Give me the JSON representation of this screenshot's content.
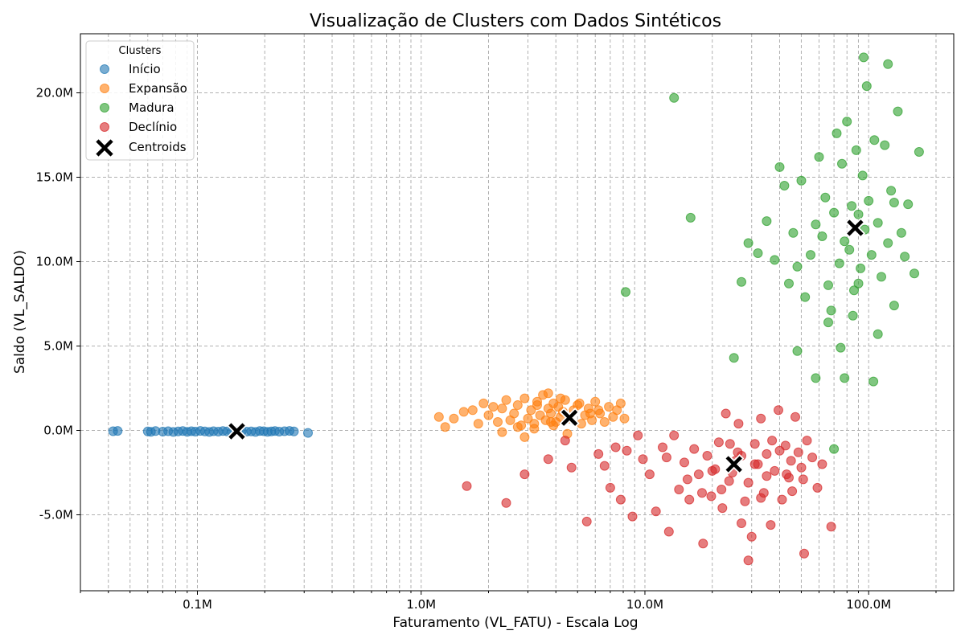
{
  "chart_data": {
    "type": "scatter",
    "title": "Visualização de Clusters com Dados Sintéticos",
    "xlabel": "Faturamento (VL_FATU) - Escala Log",
    "ylabel": "Saldo (VL_SALDO)",
    "x_scale": "log",
    "xlim": [
      30000,
      240000000
    ],
    "ylim": [
      -9500000,
      23500000
    ],
    "x_ticks": [
      {
        "value": 100000,
        "label": "0.1M"
      },
      {
        "value": 1000000,
        "label": "1.0M"
      },
      {
        "value": 10000000,
        "label": "10.0M"
      },
      {
        "value": 100000000,
        "label": "100.0M"
      }
    ],
    "y_ticks": [
      {
        "value": -5000000,
        "label": "-5.0M"
      },
      {
        "value": 0,
        "label": "0.0M"
      },
      {
        "value": 5000000,
        "label": "5.0M"
      },
      {
        "value": 10000000,
        "label": "10.0M"
      },
      {
        "value": 15000000,
        "label": "15.0M"
      },
      {
        "value": 20000000,
        "label": "20.0M"
      }
    ],
    "grid": true,
    "legend": {
      "title": "Clusters",
      "position": "top-left"
    },
    "series": [
      {
        "name": "Início",
        "color": "#1f77b4",
        "x": [
          42000,
          44000,
          60000,
          62000,
          65000,
          70000,
          74000,
          78000,
          82000,
          86000,
          90000,
          94000,
          98000,
          103000,
          108000,
          113000,
          118000,
          124000,
          130000,
          136000,
          142000,
          150000,
          158000,
          166000,
          174000,
          182000,
          190000,
          198000,
          206000,
          214000,
          222000,
          232000,
          245000,
          258000,
          270000,
          312000
        ],
        "y": [
          -50000,
          -30000,
          -60000,
          -80000,
          -40000,
          -70000,
          -50000,
          -90000,
          -60000,
          -40000,
          -80000,
          -50000,
          -70000,
          -30000,
          -60000,
          -90000,
          -50000,
          -70000,
          -40000,
          -60000,
          -80000,
          -50000,
          -30000,
          -70000,
          -60000,
          -90000,
          -40000,
          -50000,
          -80000,
          -60000,
          -40000,
          -70000,
          -50000,
          -30000,
          -60000,
          -150000
        ]
      },
      {
        "name": "Expansão",
        "color": "#ff7f0e",
        "x": [
          1200000,
          1280000,
          1400000,
          1550000,
          1700000,
          1800000,
          1900000,
          2000000,
          2100000,
          2200000,
          2300000,
          2400000,
          2500000,
          2600000,
          2700000,
          2800000,
          2900000,
          3000000,
          3100000,
          3200000,
          3300000,
          3400000,
          3500000,
          3600000,
          3700000,
          3800000,
          3900000,
          4000000,
          4100000,
          4200000,
          4300000,
          4400000,
          4600000,
          4800000,
          5000000,
          5200000,
          5400000,
          5600000,
          5800000,
          6000000,
          6300000,
          6600000,
          6900000,
          7200000,
          7500000,
          7800000,
          8100000,
          2300000,
          2700000,
          3300000,
          3700000,
          3900000,
          4500000,
          5100000,
          5700000,
          2900000,
          3200000,
          3800000,
          4200000,
          6200000
        ],
        "y": [
          800000,
          200000,
          700000,
          1100000,
          1200000,
          400000,
          1600000,
          900000,
          1400000,
          500000,
          1300000,
          1800000,
          600000,
          1000000,
          1500000,
          300000,
          1900000,
          700000,
          1200000,
          400000,
          1700000,
          900000,
          2100000,
          600000,
          1300000,
          1000000,
          1600000,
          500000,
          1400000,
          800000,
          1100000,
          1800000,
          700000,
          1200000,
          1500000,
          400000,
          900000,
          1300000,
          600000,
          1700000,
          1000000,
          500000,
          1400000,
          800000,
          1200000,
          1600000,
          700000,
          -100000,
          200000,
          1500000,
          2200000,
          300000,
          -200000,
          1600000,
          1000000,
          -400000,
          100000,
          500000,
          1900000,
          1200000
        ]
      },
      {
        "name": "Madura",
        "color": "#2ca02c",
        "x": [
          8200000,
          13500000,
          16000000,
          25000000,
          27000000,
          29000000,
          32000000,
          35000000,
          38000000,
          40000000,
          42000000,
          44000000,
          46000000,
          48000000,
          50000000,
          52000000,
          55000000,
          58000000,
          60000000,
          62000000,
          64000000,
          66000000,
          68000000,
          70000000,
          72000000,
          74000000,
          76000000,
          78000000,
          80000000,
          82000000,
          84000000,
          86000000,
          88000000,
          90000000,
          92000000,
          94000000,
          96000000,
          98000000,
          100000000,
          103000000,
          106000000,
          110000000,
          114000000,
          118000000,
          122000000,
          126000000,
          130000000,
          135000000,
          140000000,
          145000000,
          150000000,
          160000000,
          168000000,
          78000000,
          95000000,
          122000000,
          70000000,
          58000000,
          85000000,
          75000000,
          105000000,
          130000000,
          48000000,
          66000000,
          110000000,
          90000000
        ],
        "y": [
          8200000,
          19700000,
          12600000,
          4300000,
          8800000,
          11100000,
          10500000,
          12400000,
          10100000,
          15600000,
          14500000,
          8700000,
          11700000,
          9700000,
          14800000,
          7900000,
          10400000,
          12200000,
          16200000,
          11500000,
          13800000,
          8600000,
          7100000,
          12900000,
          17600000,
          9900000,
          15800000,
          11200000,
          18300000,
          10700000,
          13300000,
          8300000,
          16600000,
          12800000,
          9600000,
          15100000,
          11900000,
          20400000,
          13600000,
          10400000,
          17200000,
          12300000,
          9100000,
          16900000,
          11100000,
          14200000,
          13500000,
          18900000,
          11700000,
          10300000,
          13400000,
          9300000,
          16500000,
          3100000,
          22100000,
          21700000,
          -1100000,
          3100000,
          6800000,
          4900000,
          2900000,
          7400000,
          4700000,
          6400000,
          5700000,
          8700000
        ]
      },
      {
        "name": "Declínio",
        "color": "#d62728",
        "x": [
          1600000,
          2400000,
          2900000,
          3700000,
          4400000,
          4700000,
          5500000,
          6200000,
          6600000,
          7000000,
          7400000,
          7800000,
          8300000,
          8800000,
          9300000,
          9800000,
          10500000,
          11200000,
          12000000,
          12800000,
          13500000,
          14200000,
          15000000,
          15800000,
          16600000,
          17400000,
          18200000,
          19000000,
          19800000,
          20600000,
          21400000,
          22200000,
          23000000,
          23800000,
          24600000,
          25400000,
          26200000,
          27000000,
          28000000,
          29000000,
          30000000,
          31000000,
          32000000,
          33000000,
          34000000,
          35000000,
          36500000,
          38000000,
          39500000,
          41000000,
          42500000,
          44000000,
          45500000,
          47000000,
          48500000,
          50000000,
          51500000,
          53000000,
          56000000,
          59000000,
          62000000,
          68000000,
          29000000,
          33000000,
          27000000,
          35000000,
          40000000,
          45000000,
          51000000,
          22000000,
          20000000,
          18000000,
          26000000,
          31000000,
          37000000,
          43000000,
          15500000,
          12500000,
          24000000
        ],
        "y": [
          -3300000,
          -4300000,
          -2600000,
          -1700000,
          -600000,
          -2200000,
          -5400000,
          -1400000,
          -2100000,
          -3400000,
          -1000000,
          -4100000,
          -1200000,
          -5100000,
          -300000,
          -1700000,
          -2600000,
          -4800000,
          -1000000,
          -6000000,
          -300000,
          -3500000,
          -1900000,
          -4100000,
          -1100000,
          -2600000,
          -6700000,
          -1500000,
          -3900000,
          -2300000,
          -700000,
          -4600000,
          1000000,
          -3000000,
          -2500000,
          -1800000,
          400000,
          -5500000,
          -4200000,
          -3100000,
          -6300000,
          -800000,
          -2000000,
          700000,
          -3700000,
          -1400000,
          -5600000,
          -2400000,
          1200000,
          -4100000,
          -900000,
          -2800000,
          -3600000,
          800000,
          -1300000,
          -2200000,
          -7300000,
          -600000,
          -1600000,
          -3400000,
          -2000000,
          -5700000,
          -7700000,
          -4000000,
          -1500000,
          -2700000,
          -1200000,
          -1800000,
          -2900000,
          -3500000,
          -2400000,
          -3700000,
          -1300000,
          -2000000,
          -600000,
          -2600000,
          -2900000,
          -1600000,
          -800000
        ]
      }
    ],
    "centroids": {
      "name": "Centroids",
      "color": "#000000",
      "x": [
        150000,
        4600000,
        87000000,
        25000000
      ],
      "y": [
        -50000,
        750000,
        12000000,
        -2000000
      ]
    }
  }
}
